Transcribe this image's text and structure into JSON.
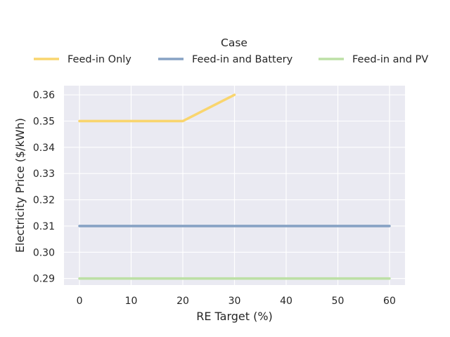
{
  "chart_data": {
    "type": "line",
    "xlabel": "RE Target (%)",
    "ylabel": "Electricity Price ($/kWh)",
    "xlim": [
      -3,
      63
    ],
    "ylim": [
      0.2875,
      0.3635
    ],
    "xticks": [
      0,
      10,
      20,
      30,
      40,
      50,
      60
    ],
    "yticks": [
      0.29,
      0.3,
      0.31,
      0.32,
      0.33,
      0.34,
      0.35,
      0.36
    ],
    "xtick_labels": [
      "0",
      "10",
      "20",
      "30",
      "40",
      "50",
      "60"
    ],
    "ytick_labels": [
      "0.29",
      "0.30",
      "0.31",
      "0.32",
      "0.33",
      "0.34",
      "0.35",
      "0.36"
    ],
    "grid": true,
    "legend": {
      "title": "Case",
      "placement": "top-center"
    },
    "series": [
      {
        "name": "Feed-in Only",
        "color": "#f9d56e",
        "x": [
          0,
          10,
          20,
          30
        ],
        "y": [
          0.35,
          0.35,
          0.35,
          0.36
        ]
      },
      {
        "name": "Feed-in and Battery",
        "color": "#87a2c4",
        "x": [
          0,
          10,
          20,
          30,
          40,
          50,
          60
        ],
        "y": [
          0.31,
          0.31,
          0.31,
          0.31,
          0.31,
          0.31,
          0.31
        ]
      },
      {
        "name": "Feed-in and PV",
        "color": "#bde0a6",
        "x": [
          0,
          10,
          20,
          30,
          40,
          50,
          60
        ],
        "y": [
          0.29,
          0.29,
          0.29,
          0.29,
          0.29,
          0.29,
          0.29
        ]
      }
    ]
  }
}
